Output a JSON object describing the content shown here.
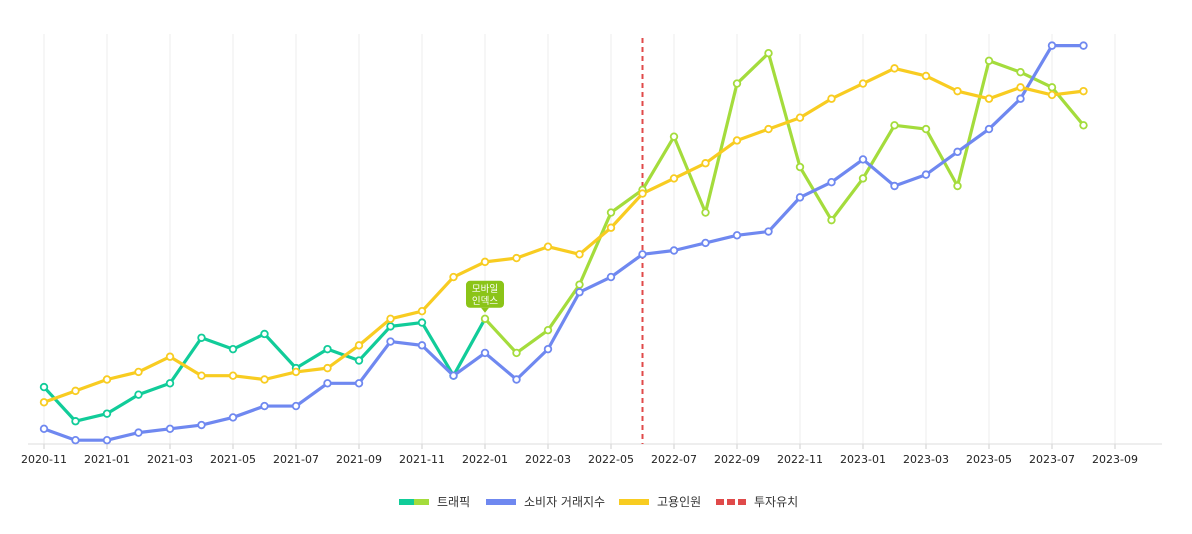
{
  "chart_data": {
    "type": "line",
    "title": "",
    "xlabel": "",
    "ylabel": "",
    "x_ticks": [
      "2020-11",
      "2021-01",
      "2021-03",
      "2021-05",
      "2021-07",
      "2021-09",
      "2021-11",
      "2022-01",
      "2022-03",
      "2022-05",
      "2022-07",
      "2022-09",
      "2022-11",
      "2023-01",
      "2023-03",
      "2023-05",
      "2023-07",
      "2023-09"
    ],
    "x_range": [
      "2020-11",
      "2023-10"
    ],
    "y_axis_visible": false,
    "y_range": [
      0,
      102
    ],
    "grid": "vertical",
    "legend_position": "bottom",
    "x": [
      "2020-11",
      "2020-12",
      "2021-01",
      "2021-02",
      "2021-03",
      "2021-04",
      "2021-05",
      "2021-06",
      "2021-07",
      "2021-08",
      "2021-09",
      "2021-10",
      "2021-11",
      "2021-12",
      "2022-01",
      "2022-02",
      "2022-03",
      "2022-04",
      "2022-05",
      "2022-06",
      "2022-07",
      "2022-08",
      "2022-09",
      "2022-10",
      "2022-11",
      "2022-12",
      "2023-01",
      "2023-02",
      "2023-03",
      "2023-04",
      "2023-05",
      "2023-06",
      "2023-07",
      "2023-08"
    ],
    "series": [
      {
        "name": "트래픽",
        "color": "#11cc99",
        "color_alt": "#a4dc3c",
        "color_switch_at": "2022-01",
        "values": [
          15,
          6,
          8,
          13,
          16,
          28,
          25,
          29,
          20,
          25,
          22,
          31,
          32,
          18,
          33,
          24,
          30,
          42,
          61,
          67,
          81,
          61,
          95,
          103,
          73,
          59,
          70,
          84,
          83,
          68,
          101,
          98,
          94,
          84
        ]
      },
      {
        "name": "소비자 거래지수",
        "color": "#6f88f0",
        "values": [
          4,
          1,
          1,
          3,
          4,
          5,
          7,
          10,
          10,
          16,
          16,
          27,
          26,
          18,
          24,
          17,
          25,
          40,
          44,
          50,
          51,
          53,
          55,
          56,
          65,
          69,
          75,
          68,
          71,
          77,
          83,
          91,
          105,
          105
        ]
      },
      {
        "name": "고용인원",
        "color": "#f8cc21",
        "values": [
          11,
          14,
          17,
          19,
          23,
          18,
          18,
          17,
          19,
          20,
          26,
          33,
          35,
          44,
          48,
          49,
          52,
          50,
          57,
          66,
          70,
          74,
          80,
          83,
          86,
          91,
          95,
          99,
          97,
          93,
          91,
          94,
          92,
          93
        ]
      }
    ],
    "markers": [
      {
        "name": "투자유치",
        "x": "2022-06",
        "color": "#e04a4a",
        "style": "dashed"
      }
    ],
    "annotations": [
      {
        "text_line1": "모바일",
        "text_line2": "인덱스",
        "x": "2022-01",
        "series": "트래픽",
        "color": "#8bc418"
      }
    ]
  },
  "legend": {
    "items": [
      {
        "label": "트래픽",
        "kind": "traffic"
      },
      {
        "label": "소비자 거래지수",
        "kind": "consumer"
      },
      {
        "label": "고용인원",
        "kind": "employment"
      },
      {
        "label": "투자유치",
        "kind": "investment"
      }
    ]
  }
}
